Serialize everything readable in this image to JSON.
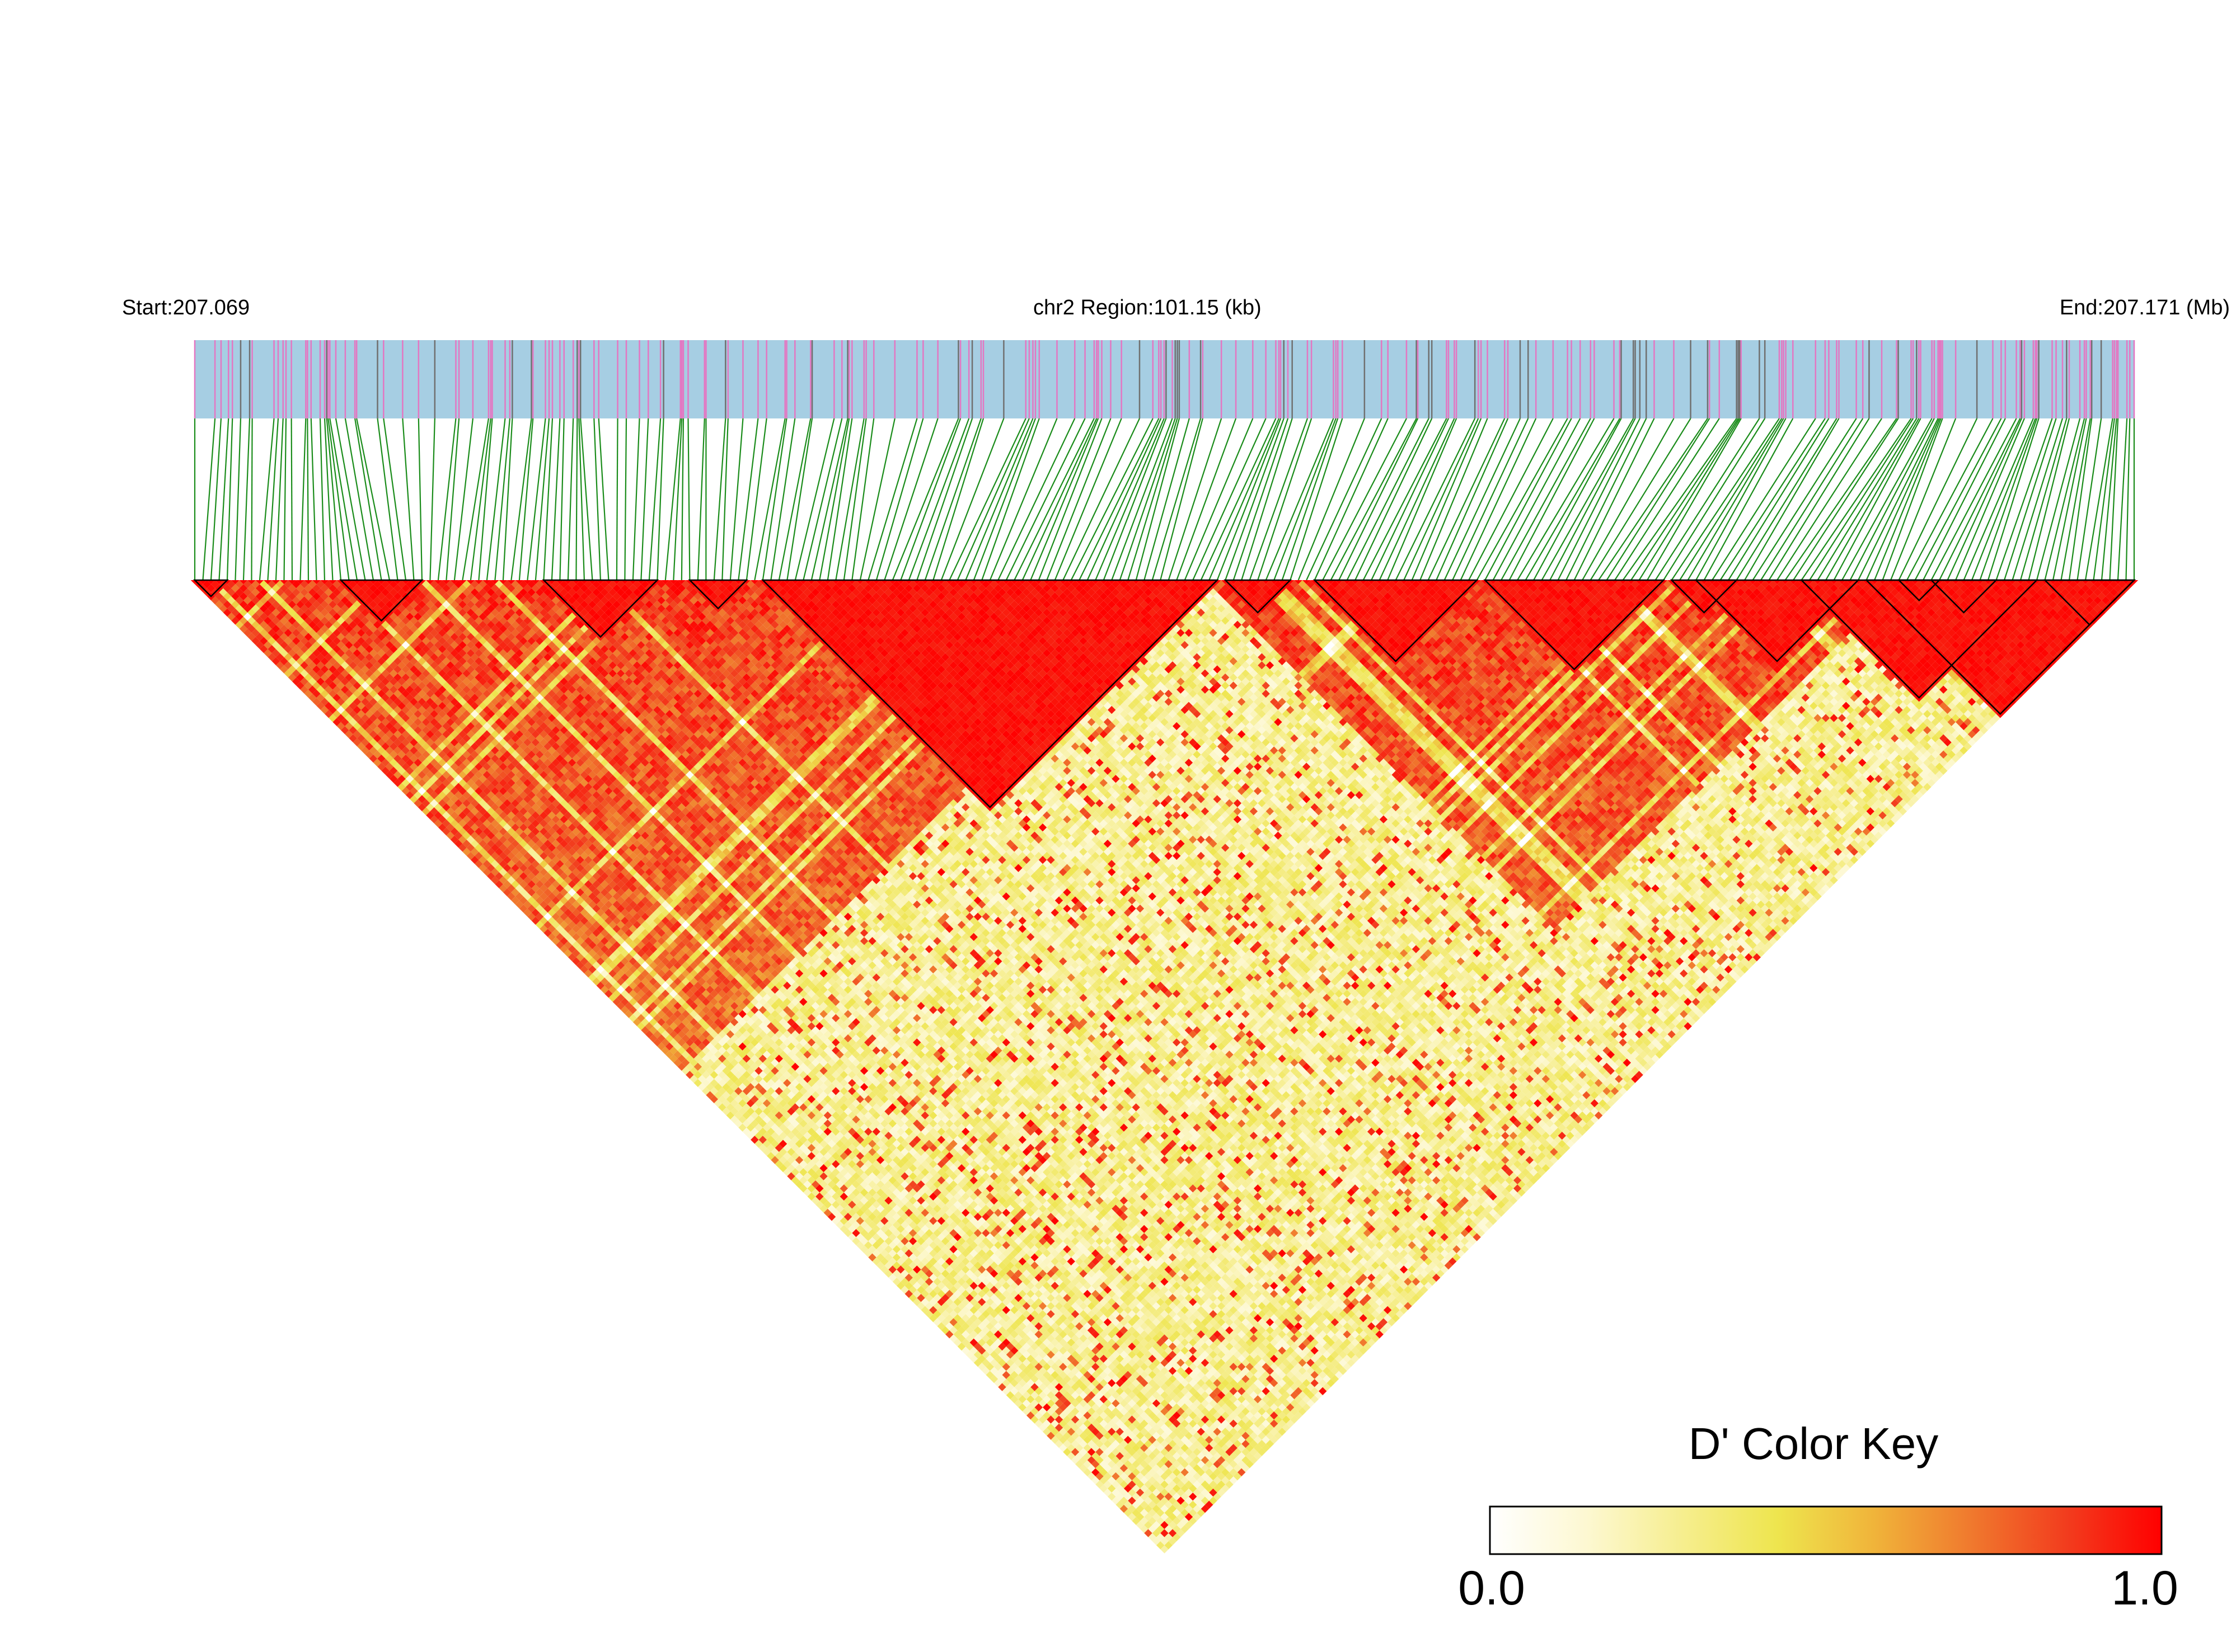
{
  "header": {
    "start_label": "Start:207.069",
    "region_label": "chr2 Region:101.15 (kb)",
    "end_label": "End:207.171 (Mb)"
  },
  "chart_data": {
    "type": "heatmap",
    "subtype": "linkage-disequilibrium triangle",
    "chromosome": "chr2",
    "region_start_mb": 207.069,
    "region_end_mb": 207.171,
    "region_length_kb": 101.15,
    "metric": "D'",
    "snp_count": 240,
    "value_range": [
      0.0,
      1.0
    ],
    "ld_blocks_snp_index": [
      [
        0,
        4
      ],
      [
        18,
        28
      ],
      [
        43,
        57
      ],
      [
        61,
        68
      ],
      [
        70,
        126
      ],
      [
        127,
        135
      ],
      [
        138,
        158
      ],
      [
        159,
        181
      ],
      [
        182,
        190
      ],
      [
        198,
        227
      ],
      [
        185,
        205
      ],
      [
        210,
        215
      ],
      [
        214,
        222
      ],
      [
        228,
        239
      ],
      [
        206,
        239
      ]
    ],
    "high_ld_regions_snp_index": [
      [
        0,
        120
      ],
      [
        125,
        210
      ],
      [
        205,
        239
      ]
    ],
    "legend": {
      "title": "D' Color Key",
      "min_label": "0.0",
      "max_label": "1.0",
      "gradient_colors": [
        "#ffffff",
        "#fdf8d2",
        "#f6ee8f",
        "#eee54e",
        "#f0b43a",
        "#f07a2e",
        "#f23d1e",
        "#ff0000"
      ]
    },
    "colors": {
      "track_fill": "#a6cee3",
      "snp_tick_pink": "#e377c2",
      "snp_tick_gray": "#707070",
      "connector_lines": "#1a8c1a",
      "ld_high": "#ff0000",
      "ld_low": "#ffffff"
    }
  }
}
